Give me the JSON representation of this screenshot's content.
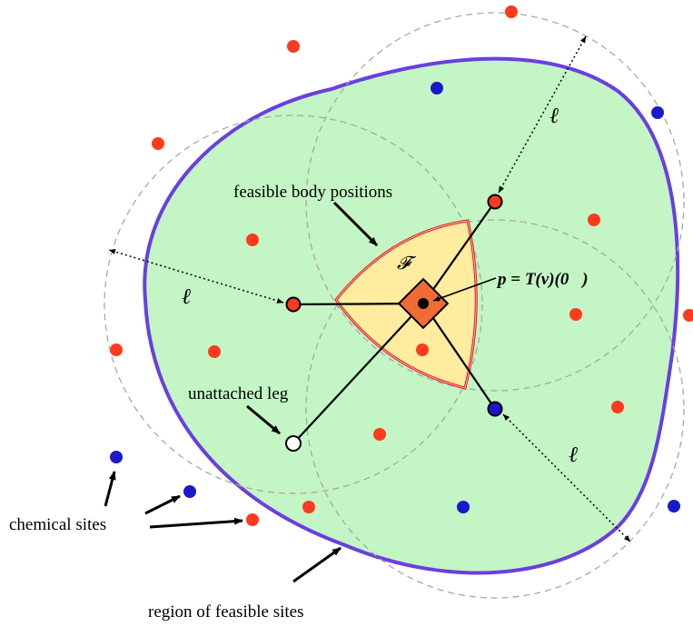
{
  "labels": {
    "feasible_body_positions": "feasible body positions",
    "unattached_leg": "unattached leg",
    "chemical_sites": "chemical sites",
    "region_of_feasible_sites": "region of feasible sites",
    "F_symbol": "𝓕",
    "body_equation": "p = T(v)(0⃗)",
    "ell": "ℓ"
  },
  "colors": {
    "region_fill": "#c4f5c4",
    "region_outline": "#6a3fe0",
    "feasible_fill": "#ffec9e",
    "feasible_outline": "#e02020",
    "body_fill": "#f26b35",
    "red_site": "#ff3a1f",
    "blue_site": "#1a1acc",
    "circle_dash": "#a8a8a8"
  },
  "sites": {
    "red_count": 17,
    "blue_count": 7
  }
}
